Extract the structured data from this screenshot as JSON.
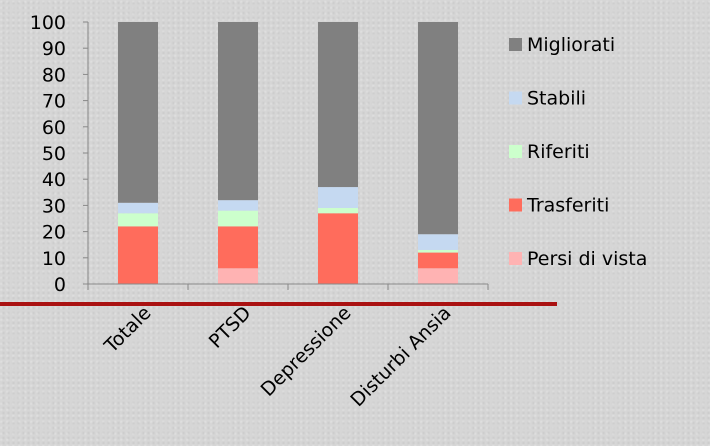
{
  "chart_data": {
    "type": "bar",
    "stacked": true,
    "categories": [
      "Totale",
      "PTSD",
      "Depressione",
      "Disturbi Ansia"
    ],
    "series": [
      {
        "name": "Persi di vista",
        "color": "#ffb3b3",
        "values": [
          0,
          6,
          0,
          6
        ]
      },
      {
        "name": "Trasferiti",
        "color": "#ff6c5c",
        "values": [
          22,
          16,
          27,
          6
        ]
      },
      {
        "name": "Riferiti",
        "color": "#ccffcc",
        "values": [
          5,
          6,
          2,
          1
        ]
      },
      {
        "name": "Stabili",
        "color": "#c5d9f1",
        "values": [
          4,
          4,
          8,
          6
        ]
      },
      {
        "name": "Migliorati",
        "color": "#808080",
        "values": [
          69,
          68,
          63,
          81
        ]
      }
    ],
    "ylim": [
      0,
      100
    ],
    "yticks": [
      "0",
      "10",
      "20",
      "30",
      "40",
      "50",
      "60",
      "70",
      "80",
      "90",
      "100"
    ],
    "grid": false,
    "legend_position": "right",
    "title": "",
    "xlabel": "",
    "ylabel": ""
  },
  "colors": {
    "baseline_rule": "#aa1111",
    "axis": "#888888"
  }
}
